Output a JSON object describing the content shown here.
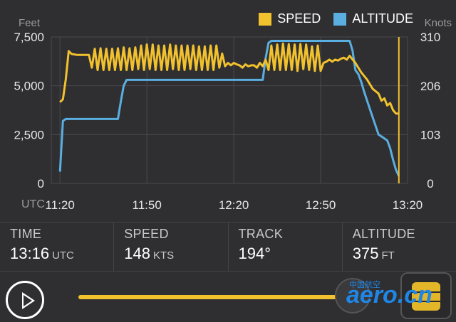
{
  "legend": {
    "speed": "SPEED",
    "altitude": "ALTITUDE",
    "speed_color": "#f2c12e",
    "altitude_color": "#5aaee0"
  },
  "chart_data": {
    "type": "line",
    "left_axis_label": "Feet",
    "right_axis_label": "Knots",
    "x_axis_prefix": "UTC",
    "x_ticks": [
      "11:20",
      "11:50",
      "12:20",
      "12:50",
      "13:20"
    ],
    "x_tick_minutes": [
      0,
      30,
      60,
      90,
      120
    ],
    "xlim_minutes": [
      -3,
      120
    ],
    "y_left_ticks": [
      "7,500",
      "5,000",
      "2,500",
      "0"
    ],
    "y_left_tick_values": [
      7500,
      5000,
      2500,
      0
    ],
    "y_left_lim": [
      0,
      7500
    ],
    "y_right_ticks": [
      "310",
      "206",
      "103",
      "0"
    ],
    "y_right_tick_values": [
      310,
      206,
      103,
      0
    ],
    "y_right_lim": [
      0,
      310
    ],
    "grid": true,
    "cursor_minutes": 117,
    "series": [
      {
        "name": "ALTITUDE",
        "axis": "left",
        "x": [
          0,
          1,
          2,
          20,
          21,
          22,
          23,
          70,
          71,
          72,
          73,
          100,
          101,
          102,
          103,
          104,
          105,
          107,
          110,
          112,
          113,
          114,
          115,
          116,
          117
        ],
        "y": [
          600,
          3200,
          3300,
          3300,
          4200,
          5000,
          5300,
          5300,
          6400,
          7200,
          7300,
          7300,
          6800,
          5800,
          5600,
          5200,
          4700,
          3800,
          2500,
          2300,
          2200,
          1800,
          1200,
          700,
          375
        ]
      },
      {
        "name": "SPEED",
        "axis": "right",
        "x": [
          0,
          1,
          2,
          3,
          4,
          6,
          8,
          10,
          11,
          12,
          13,
          14,
          15,
          16,
          17,
          18,
          19,
          20,
          21,
          22,
          23,
          24,
          25,
          26,
          27,
          28,
          29,
          30,
          31,
          32,
          33,
          34,
          35,
          36,
          37,
          38,
          39,
          40,
          41,
          42,
          43,
          44,
          45,
          46,
          47,
          48,
          49,
          50,
          51,
          52,
          53,
          54,
          55,
          56,
          57,
          58,
          59,
          60,
          61,
          62,
          63,
          64,
          65,
          66,
          67,
          68,
          69,
          70,
          71,
          72,
          73,
          74,
          75,
          76,
          77,
          78,
          79,
          80,
          81,
          82,
          83,
          84,
          85,
          86,
          87,
          88,
          89,
          90,
          91,
          92,
          93,
          94,
          95,
          96,
          97,
          98,
          99,
          100,
          102,
          104,
          106,
          108,
          110,
          111,
          112,
          113,
          114,
          115,
          116,
          117
        ],
        "y": [
          172,
          178,
          220,
          280,
          274,
          272,
          272,
          272,
          245,
          285,
          240,
          286,
          240,
          285,
          240,
          285,
          240,
          286,
          240,
          288,
          240,
          286,
          240,
          288,
          242,
          292,
          240,
          294,
          242,
          294,
          240,
          292,
          240,
          292,
          240,
          294,
          242,
          292,
          240,
          292,
          240,
          292,
          242,
          292,
          240,
          290,
          240,
          290,
          240,
          292,
          240,
          292,
          245,
          275,
          248,
          255,
          250,
          255,
          252,
          250,
          245,
          252,
          248,
          250,
          250,
          245,
          255,
          248,
          262,
          240,
          292,
          240,
          294,
          240,
          296,
          240,
          295,
          240,
          294,
          238,
          295,
          242,
          294,
          240,
          290,
          238,
          292,
          238,
          255,
          258,
          262,
          258,
          262,
          260,
          264,
          266,
          262,
          270,
          255,
          235,
          220,
          200,
          190,
          175,
          180,
          165,
          170,
          155,
          148,
          148
        ]
      }
    ]
  },
  "stats": [
    {
      "label": "TIME",
      "value": "13:16",
      "unit": "UTC"
    },
    {
      "label": "SPEED",
      "value": "148",
      "unit": "KTS"
    },
    {
      "label": "TRACK",
      "value": "194°",
      "unit": ""
    },
    {
      "label": "ALTITUDE",
      "value": "375",
      "unit": "FT"
    }
  ],
  "player": {
    "progress": 0.98,
    "accent": "#f2c12e"
  },
  "watermark": {
    "top": "中国航空",
    "main": "aero.cn"
  }
}
